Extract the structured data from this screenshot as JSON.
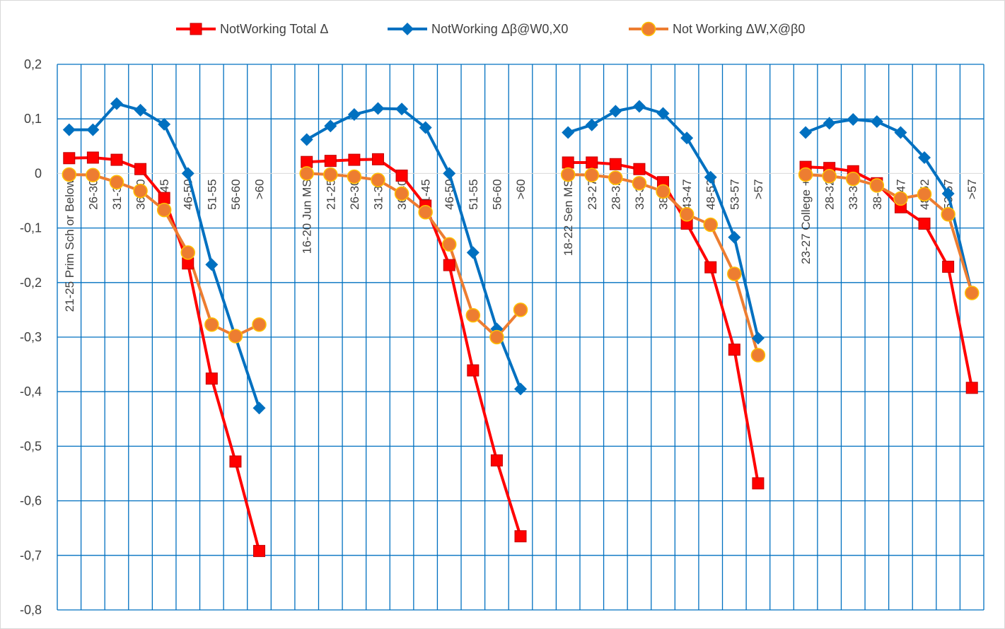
{
  "chart_data": {
    "type": "line",
    "title": "",
    "xlabel": "",
    "ylabel": "",
    "ylim": [
      -0.8,
      0.2
    ],
    "yticks": [
      "0,2",
      "0,1",
      "0",
      "-0,1",
      "-0,2",
      "-0,3",
      "-0,4",
      "-0,5",
      "-0,6",
      "-0,7",
      "-0,8"
    ],
    "grid": true,
    "legend_position": "top",
    "categories": [
      "21-25 Prim Sch or Below",
      "26-30",
      "31-35",
      "36-40",
      "41-45",
      "46-50",
      "51-55",
      "56-60",
      ">60",
      "",
      "16-20 Jun MS",
      "21-25",
      "26-30",
      "31-35",
      "36-40",
      "41-45",
      "46-50",
      "51-55",
      "56-60",
      ">60",
      "",
      "18-22 Sen MS",
      "23-27",
      "28-32",
      "33-37",
      "38-42",
      "43-47",
      "48-52",
      "53-57",
      ">57",
      "",
      "23-27 College +",
      "28-32",
      "33-37",
      "38-42",
      "43-47",
      "48-52",
      "53-57",
      ">57"
    ],
    "series": [
      {
        "name": "NotWorking Total Δ",
        "color": "#ff0000",
        "marker": "square",
        "values": [
          0.028,
          0.029,
          0.025,
          0.008,
          -0.045,
          -0.165,
          -0.376,
          -0.528,
          -0.692,
          null,
          0.021,
          0.023,
          0.025,
          0.026,
          -0.004,
          -0.059,
          -0.168,
          -0.361,
          -0.526,
          -0.665,
          null,
          0.02,
          0.02,
          0.017,
          0.008,
          -0.016,
          -0.092,
          -0.172,
          -0.323,
          -0.568,
          null,
          0.012,
          0.01,
          0.004,
          -0.018,
          -0.062,
          -0.092,
          -0.171,
          -0.393
        ]
      },
      {
        "name": "NotWorking Δβ@W0,X0",
        "color": "#0070c0",
        "marker": "diamond",
        "values": [
          0.08,
          0.08,
          0.128,
          0.116,
          0.09,
          0.0,
          -0.167,
          -0.3,
          -0.43,
          null,
          0.062,
          0.087,
          0.108,
          0.119,
          0.118,
          0.084,
          0.0,
          -0.145,
          -0.285,
          -0.395,
          null,
          0.075,
          0.089,
          0.114,
          0.123,
          0.11,
          0.065,
          -0.007,
          -0.117,
          -0.302,
          null,
          0.075,
          0.092,
          0.099,
          0.095,
          0.075,
          0.029,
          -0.037,
          -0.22
        ]
      },
      {
        "name": "Not Working ΔW,X@β0",
        "color": "#ed7d31",
        "marker": "circle",
        "values": [
          -0.002,
          -0.003,
          -0.016,
          -0.032,
          -0.067,
          -0.145,
          -0.277,
          -0.298,
          -0.277,
          null,
          0.0,
          -0.002,
          -0.006,
          -0.012,
          -0.037,
          -0.071,
          -0.13,
          -0.26,
          -0.3,
          -0.25,
          null,
          -0.002,
          -0.003,
          -0.008,
          -0.018,
          -0.033,
          -0.075,
          -0.094,
          -0.184,
          -0.333,
          null,
          -0.002,
          -0.005,
          -0.01,
          -0.022,
          -0.046,
          -0.038,
          -0.075,
          -0.219
        ]
      }
    ]
  }
}
